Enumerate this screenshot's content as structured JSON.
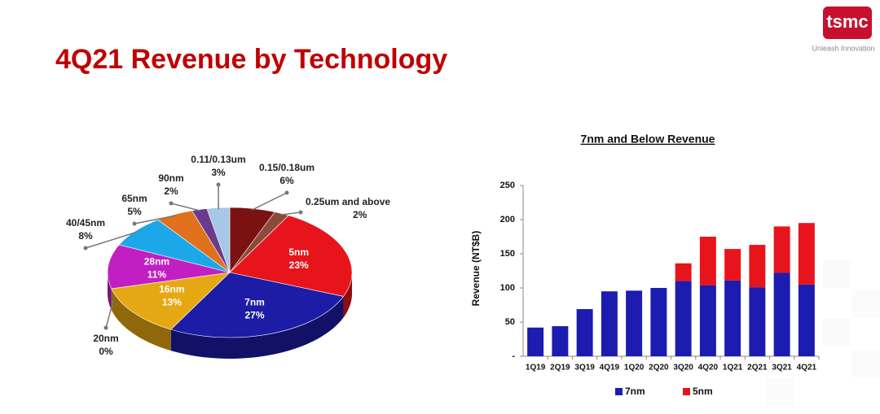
{
  "header": {
    "logo": "tsmc",
    "tagline": "Unleash Innovation",
    "title": "4Q21 Revenue by Technology"
  },
  "chart_data": [
    {
      "type": "pie",
      "categories": [
        "0.15/0.18um",
        "0.25um and above",
        "5nm",
        "7nm",
        "16nm",
        "20nm",
        "28nm",
        "40/45nm",
        "65nm",
        "90nm",
        "0.11/0.13um"
      ],
      "values": [
        6,
        2,
        23,
        27,
        13,
        0,
        11,
        8,
        5,
        2,
        3
      ],
      "value_labels": [
        "6%",
        "2%",
        "23%",
        "27%",
        "13%",
        "0%",
        "11%",
        "8%",
        "5%",
        "2%",
        "3%"
      ],
      "colors": [
        "#7a1212",
        "#8a4a3c",
        "#e8141b",
        "#1c1ca6",
        "#e6a812",
        "#9a9a9a",
        "#c21fc2",
        "#1ca8e8",
        "#e0701c",
        "#6a3a8e",
        "#a8c6e6"
      ]
    },
    {
      "type": "bar",
      "stacked": true,
      "title": "7nm and Below Revenue",
      "y_label": "Revenue (NT$B)",
      "categories": [
        "1Q19",
        "2Q19",
        "3Q19",
        "4Q19",
        "1Q20",
        "2Q20",
        "3Q20",
        "4Q20",
        "1Q21",
        "2Q21",
        "3Q21",
        "4Q21"
      ],
      "series": [
        {
          "name": "7nm",
          "color": "#1c1cb0",
          "values": [
            42,
            44,
            69,
            95,
            96,
            100,
            110,
            104,
            111,
            101,
            122,
            105
          ]
        },
        {
          "name": "5nm",
          "color": "#e8141b",
          "values": [
            null,
            null,
            null,
            null,
            null,
            null,
            26,
            71,
            46,
            62,
            68,
            90
          ]
        }
      ],
      "ylim": [
        0,
        250
      ],
      "yticks": [
        {
          "value": 0,
          "label": "-"
        },
        50,
        100,
        150,
        200,
        250
      ],
      "grid": false
    }
  ]
}
